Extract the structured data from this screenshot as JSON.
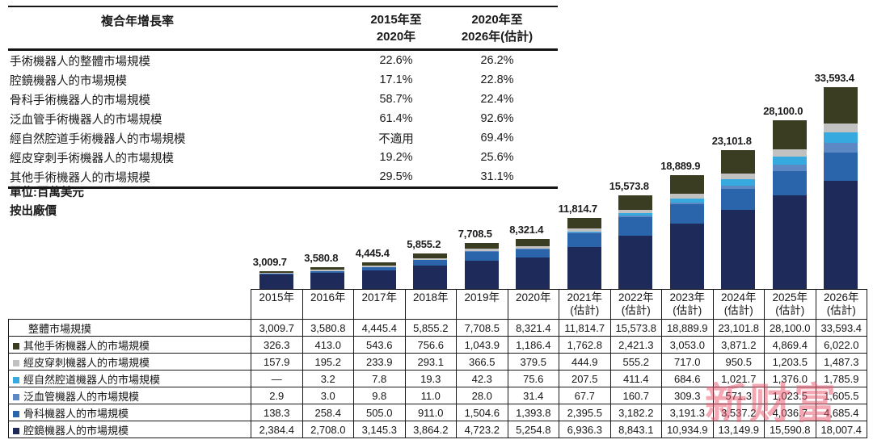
{
  "cagr_table": {
    "title": "複合年增長率",
    "col1_header": {
      "line1": "2015年至",
      "line2": "2020年"
    },
    "col2_header": {
      "line1": "2020年至",
      "line2": "2026年(估計)"
    },
    "rows": [
      {
        "label": "手術機器人的整體市場規模",
        "c1": "22.6%",
        "c2": "26.2%"
      },
      {
        "label": "腔鏡機器人的市場規模",
        "c1": "17.1%",
        "c2": "22.8%"
      },
      {
        "label": "骨科手術機器人的市場規模",
        "c1": "58.7%",
        "c2": "22.4%"
      },
      {
        "label": "泛血管手術機器人的市場規模",
        "c1": "61.4%",
        "c2": "92.6%"
      },
      {
        "label": "經自然腔道手術機器人的市場規模",
        "c1": "不適用",
        "c2": "69.4%"
      },
      {
        "label": "經皮穿刺手術機器人的市場規模",
        "c1": "19.2%",
        "c2": "25.6%"
      },
      {
        "label": "其他手術機器人的市場規模",
        "c1": "29.5%",
        "c2": "31.1%"
      }
    ]
  },
  "notes": {
    "unit": "單位:百萬美元",
    "basis": "按出廠價"
  },
  "chart_data": {
    "type": "bar",
    "stacked": true,
    "unit_label": "百萬美元",
    "legend_position": "table-left",
    "grid": false,
    "ylim": [
      0,
      33593.4
    ],
    "categories": [
      "2015年",
      "2016年",
      "2017年",
      "2018年",
      "2019年",
      "2020年",
      "2021年(估計)",
      "2022年(估計)",
      "2023年(估計)",
      "2024年(估計)",
      "2025年(估計)",
      "2026年(估計)"
    ],
    "totals": [
      3009.7,
      3580.8,
      4445.4,
      5855.2,
      7708.5,
      8321.4,
      11814.7,
      15573.8,
      18889.9,
      23101.8,
      28100.0,
      33593.4
    ],
    "totals_formatted": [
      "3,009.7",
      "3,580.8",
      "4,445.4",
      "5,855.2",
      "7,708.5",
      "8,321.4",
      "11,814.7",
      "15,573.8",
      "18,889.9",
      "23,101.8",
      "28,100.0",
      "33,593.4"
    ],
    "series": [
      {
        "key": "endoscopic",
        "name": "腔鏡機器人的市場規模",
        "color": "#1e2a5a",
        "values": [
          2384.4,
          2708.0,
          3145.3,
          3864.2,
          4723.2,
          5254.8,
          6936.3,
          8843.1,
          10934.9,
          13149.9,
          15590.8,
          18007.4
        ]
      },
      {
        "key": "orthopedic",
        "name": "骨科機器人的市場規模",
        "color": "#2a64ab",
        "values": [
          138.3,
          258.4,
          505.0,
          911.0,
          1504.6,
          1393.8,
          2395.5,
          3182.2,
          3191.3,
          3537.2,
          4036.7,
          4685.4
        ]
      },
      {
        "key": "panvascular",
        "name": "泛血管機器人的市場規模",
        "color": "#5c88c4",
        "values": [
          2.9,
          3.0,
          9.8,
          11.0,
          28.0,
          31.4,
          67.7,
          160.7,
          309.3,
          571.3,
          1023.5,
          1605.5
        ]
      },
      {
        "key": "natural-orifice",
        "name": "經自然腔道機器人的市場規模",
        "color": "#36a9de",
        "values": [
          0,
          3.2,
          7.8,
          19.3,
          42.3,
          75.6,
          207.5,
          411.4,
          684.6,
          1021.7,
          1376.0,
          1785.9
        ]
      },
      {
        "key": "percutaneous",
        "name": "經皮穿刺機器人的市場規模",
        "color": "#c1c1c1",
        "values": [
          157.9,
          195.2,
          233.9,
          293.1,
          366.5,
          379.5,
          444.9,
          555.2,
          717.0,
          950.5,
          1203.5,
          1487.3
        ]
      },
      {
        "key": "other",
        "name": "其他手術機器人的市場規模",
        "color": "#3a3d22",
        "values": [
          326.3,
          413.0,
          543.6,
          756.6,
          1043.9,
          1186.4,
          1762.8,
          2421.3,
          3053.0,
          3871.2,
          4869.4,
          6022.0
        ]
      }
    ]
  },
  "bottom_table": {
    "year_headers": [
      {
        "line1": "2015年",
        "line2": ""
      },
      {
        "line1": "2016年",
        "line2": ""
      },
      {
        "line1": "2017年",
        "line2": ""
      },
      {
        "line1": "2018年",
        "line2": ""
      },
      {
        "line1": "2019年",
        "line2": ""
      },
      {
        "line1": "2020年",
        "line2": ""
      },
      {
        "line1": "2021年",
        "line2": "(估計)"
      },
      {
        "line1": "2022年",
        "line2": "(估計)"
      },
      {
        "line1": "2023年",
        "line2": "(估計)"
      },
      {
        "line1": "2024年",
        "line2": "(估計)"
      },
      {
        "line1": "2025年",
        "line2": "(估計)"
      },
      {
        "line1": "2026年",
        "line2": "(估計)"
      }
    ],
    "rows": [
      {
        "key": "total",
        "label": "整體市場規摸",
        "swatch": null,
        "values": [
          "3,009.7",
          "3,580.8",
          "4,445.4",
          "5,855.2",
          "7,708.5",
          "8,321.4",
          "11,814.7",
          "15,573.8",
          "18,889.9",
          "23,101.8",
          "28,100.0",
          "33,593.4"
        ]
      },
      {
        "key": "other",
        "label": "其他手術機器人的市場規模",
        "swatch": "#3a3d22",
        "values": [
          "326.3",
          "413.0",
          "543.6",
          "756.6",
          "1,043.9",
          "1,186.4",
          "1,762.8",
          "2,421.3",
          "3,053.0",
          "3,871.2",
          "4,869.4",
          "6,022.0"
        ]
      },
      {
        "key": "percutaneous",
        "label": "經皮穿刺機器人的市場規模",
        "swatch": "#c1c1c1",
        "values": [
          "157.9",
          "195.2",
          "233.9",
          "293.1",
          "366.5",
          "379.5",
          "444.9",
          "555.2",
          "717.0",
          "950.5",
          "1,203.5",
          "1,487.3"
        ]
      },
      {
        "key": "natural-orifice",
        "label": "經自然腔道機器人的市場規模",
        "swatch": "#36a9de",
        "values": [
          "—",
          "3.2",
          "7.8",
          "19.3",
          "42.3",
          "75.6",
          "207.5",
          "411.4",
          "684.6",
          "1,021.7",
          "1,376.0",
          "1,785.9"
        ]
      },
      {
        "key": "panvascular",
        "label": "泛血管機器人的市場規模",
        "swatch": "#5c88c4",
        "values": [
          "2.9",
          "3.0",
          "9.8",
          "11.0",
          "28.0",
          "31.4",
          "67.7",
          "160.7",
          "309.3",
          "571.3",
          "1,023.5",
          "1,605.5"
        ]
      },
      {
        "key": "orthopedic",
        "label": "骨科機器人的市場規模",
        "swatch": "#2a64ab",
        "values": [
          "138.3",
          "258.4",
          "505.0",
          "911.0",
          "1,504.6",
          "1,393.8",
          "2,395.5",
          "3,182.2",
          "3,191.3",
          "3,537.2",
          "4,036.7",
          "4,685.4"
        ]
      },
      {
        "key": "endoscopic",
        "label": "腔鏡機器人的市場規模",
        "swatch": "#1e2a5a",
        "values": [
          "2,384.4",
          "2,708.0",
          "3,145.3",
          "3,864.2",
          "4,723.2",
          "5,254.8",
          "6,936.3",
          "8,843.1",
          "10,934.9",
          "13,149.9",
          "15,590.8",
          "18,007.4"
        ]
      }
    ]
  },
  "watermark": {
    "text": "新财富"
  }
}
